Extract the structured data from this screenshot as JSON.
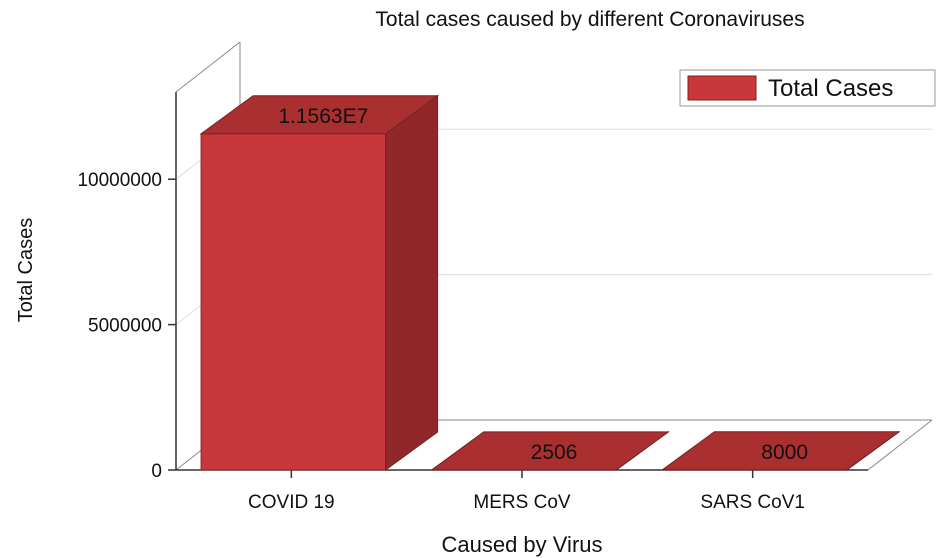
{
  "chart_data": {
    "type": "bar",
    "style": "3d",
    "title": "Total cases caused by different Coronaviruses",
    "xlabel": "Caused by Virus",
    "ylabel": "Total Cases",
    "categories": [
      "COVID 19",
      "MERS CoV",
      "SARS CoV1"
    ],
    "series": [
      {
        "name": "Total Cases",
        "values": [
          11563000,
          2506,
          8000
        ],
        "color": "#c8373a"
      }
    ],
    "data_labels": [
      "1.1563E7",
      "2506",
      "8000"
    ],
    "ylim": [
      0,
      13000000
    ],
    "yticks": [
      0,
      5000000,
      10000000
    ],
    "ytick_labels": [
      "0",
      "5000000",
      "10000000"
    ],
    "grid": true,
    "legend_position": "top-right"
  }
}
